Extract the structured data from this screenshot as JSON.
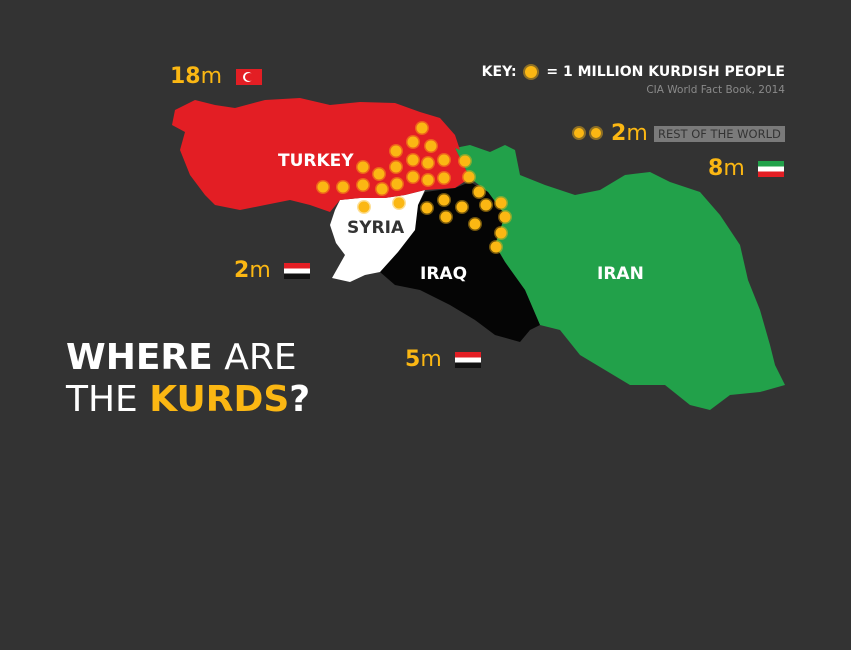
{
  "key": {
    "label": "KEY:",
    "icon": "kurd-sun-icon",
    "text": "= 1 MILLION KURDISH PEOPLE",
    "source": "CIA World Fact Book, 2014"
  },
  "colors": {
    "background": "#333333",
    "accent": "#fbb713",
    "turkey": "#e31e24",
    "syria": "#ffffff",
    "iraq": "#050505",
    "iran": "#22a14a"
  },
  "title": {
    "line1_bold": "WHERE",
    "line1_rest": "ARE",
    "line2_start": "THE",
    "line2_accent": "KURDS",
    "line2_end": "?"
  },
  "countries": [
    {
      "name": "TURKEY",
      "count": "18",
      "unit": "m",
      "millions": 18,
      "flag": "turkey-flag"
    },
    {
      "name": "SYRIA",
      "count": "2",
      "unit": "m",
      "millions": 2,
      "flag": "syria-flag"
    },
    {
      "name": "IRAQ",
      "count": "5",
      "unit": "m",
      "millions": 5,
      "flag": "iraq-flag"
    },
    {
      "name": "IRAN",
      "count": "8",
      "unit": "m",
      "millions": 8,
      "flag": "iran-flag"
    }
  ],
  "rest": {
    "count": "2",
    "unit": "m",
    "millions": 2,
    "label": "REST OF THE WORLD"
  }
}
